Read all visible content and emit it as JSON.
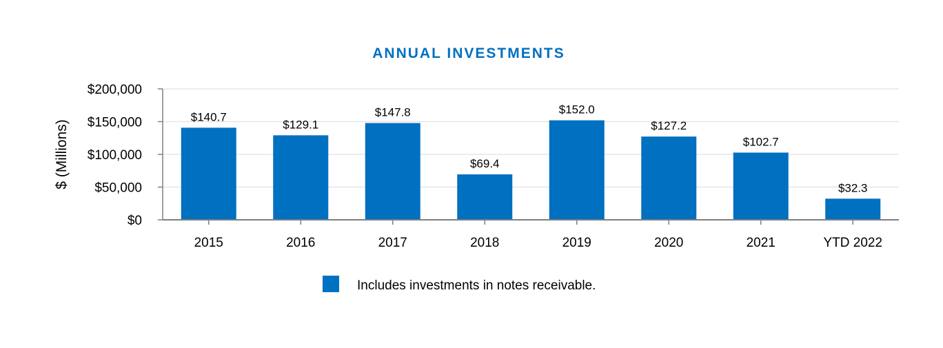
{
  "chart_data": {
    "type": "bar",
    "title": "ANNUAL INVESTMENTS",
    "ylabel": "$ (Millions)",
    "xlabel": "",
    "categories": [
      "2015",
      "2016",
      "2017",
      "2018",
      "2019",
      "2020",
      "2021",
      "YTD 2022"
    ],
    "series": [
      {
        "name": "Includes investments in notes receivable.",
        "values": [
          140700,
          129100,
          147800,
          69400,
          152000,
          127200,
          102700,
          32300
        ],
        "labels": [
          "$140.7",
          "$129.1",
          "$147.8",
          "$69.4",
          "$152.0",
          "$127.2",
          "$102.7",
          "$32.3"
        ]
      }
    ],
    "ylim": [
      0,
      200000
    ],
    "yticks": [
      0,
      50000,
      100000,
      150000,
      200000
    ],
    "ytick_labels": [
      "$0",
      "$50,000",
      "$100,000",
      "$150,000",
      "$200,000"
    ],
    "grid": true,
    "legend_position": "bottom-center",
    "colors": {
      "bar": "#0070c0",
      "title": "#0070c0",
      "grid": "#e6e6e6",
      "axis": "#7f7f7f"
    }
  }
}
